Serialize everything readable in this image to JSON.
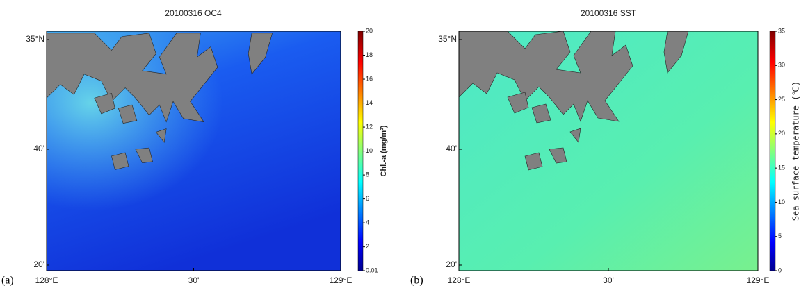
{
  "panels": [
    {
      "panel_label": "(a)",
      "title": "20100316 OC4",
      "y_ticks": [
        "35°N",
        "40'",
        "20'"
      ],
      "x_ticks": [
        "128°E",
        "30'",
        "129°E"
      ],
      "colorbar": {
        "label": "Chl.-a (mg/m³)",
        "range": [
          0.01,
          20
        ],
        "ticks": [
          0.01,
          2,
          4,
          6,
          8,
          10,
          12,
          14,
          16,
          18,
          20
        ]
      }
    },
    {
      "panel_label": "(b)",
      "title": "20100316 SST",
      "y_ticks": [
        "35°N",
        "40'",
        "20'"
      ],
      "x_ticks": [
        "128°E",
        "30'",
        "129°E"
      ],
      "colorbar": {
        "label": "Sea surface temperature (℃)",
        "range": [
          0,
          35
        ],
        "ticks": [
          0,
          5,
          10,
          15,
          20,
          25,
          30,
          35
        ]
      }
    }
  ]
}
